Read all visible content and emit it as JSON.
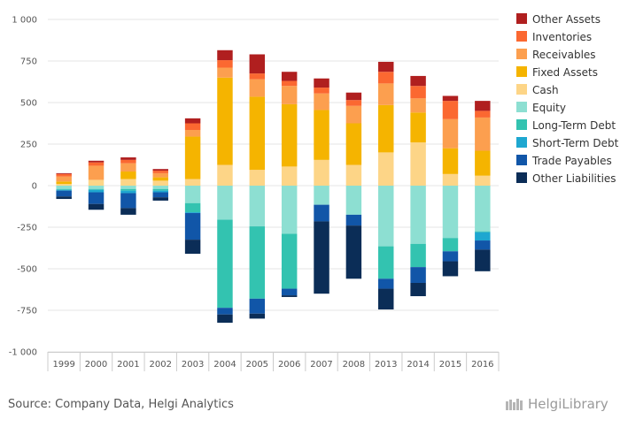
{
  "chart_data": {
    "type": "bar",
    "stacked": true,
    "categories": [
      "1999",
      "2000",
      "2001",
      "2002",
      "2003",
      "2004",
      "2005",
      "2006",
      "2007",
      "2008",
      "2013",
      "2014",
      "2015",
      "2016"
    ],
    "ylim": [
      -1000,
      1000
    ],
    "yticks": [
      -1000,
      -750,
      -500,
      -250,
      0,
      250,
      500,
      750,
      1000
    ],
    "ytick_labels": [
      "-1 000",
      "-750",
      "-500",
      "-250",
      "0",
      "250",
      "500",
      "750",
      "1 000"
    ],
    "grid": true,
    "legend_position": "right",
    "positive_series": [
      {
        "name": "Cash",
        "color": "#fdd587",
        "values": [
          10,
          35,
          40,
          30,
          40,
          125,
          95,
          115,
          155,
          125,
          200,
          260,
          70,
          60
        ]
      },
      {
        "name": "Fixed Assets",
        "color": "#f5b400",
        "values": [
          15,
          0,
          45,
          20,
          255,
          525,
          440,
          375,
          300,
          250,
          285,
          180,
          155,
          150
        ]
      },
      {
        "name": "Receivables",
        "color": "#fc9f4f",
        "values": [
          30,
          85,
          50,
          25,
          40,
          60,
          105,
          110,
          100,
          105,
          130,
          85,
          175,
          200
        ]
      },
      {
        "name": "Inventories",
        "color": "#fb6831",
        "values": [
          15,
          20,
          20,
          15,
          40,
          45,
          35,
          30,
          35,
          35,
          70,
          75,
          110,
          40
        ]
      },
      {
        "name": "Other Assets",
        "color": "#b01f1f",
        "values": [
          5,
          10,
          15,
          10,
          30,
          60,
          115,
          55,
          55,
          45,
          60,
          60,
          30,
          60
        ]
      }
    ],
    "negative_series": [
      {
        "name": "Equity",
        "color": "#8ddfd2",
        "values": [
          -20,
          -20,
          -20,
          -20,
          -105,
          -205,
          -245,
          -290,
          -115,
          -175,
          -365,
          -350,
          -315,
          -275
        ]
      },
      {
        "name": "Long-Term Debt",
        "color": "#33c3b0",
        "values": [
          -5,
          -5,
          -10,
          -10,
          -55,
          -530,
          -435,
          -330,
          0,
          0,
          -195,
          -140,
          -80,
          -5
        ]
      },
      {
        "name": "Short-Term Debt",
        "color": "#1ea7d0",
        "values": [
          -5,
          -15,
          -15,
          -10,
          -5,
          0,
          0,
          0,
          0,
          0,
          0,
          0,
          0,
          -50
        ]
      },
      {
        "name": "Trade Payables",
        "color": "#1156a8",
        "values": [
          -35,
          -70,
          -90,
          -30,
          -160,
          -40,
          -90,
          -40,
          -100,
          -65,
          -60,
          -95,
          -60,
          -55
        ]
      },
      {
        "name": "Other Liabilities",
        "color": "#0b2d57",
        "values": [
          -15,
          -35,
          -40,
          -20,
          -85,
          -50,
          -30,
          -10,
          -435,
          -320,
          -125,
          -80,
          -90,
          -130
        ]
      }
    ],
    "legend": [
      "Other Assets",
      "Inventories",
      "Receivables",
      "Fixed Assets",
      "Cash",
      "Equity",
      "Long-Term Debt",
      "Short-Term Debt",
      "Trade Payables",
      "Other Liabilities"
    ]
  },
  "source_text": "Source: Company Data, Helgi Analytics",
  "brand_text": "HelgiLibrary"
}
